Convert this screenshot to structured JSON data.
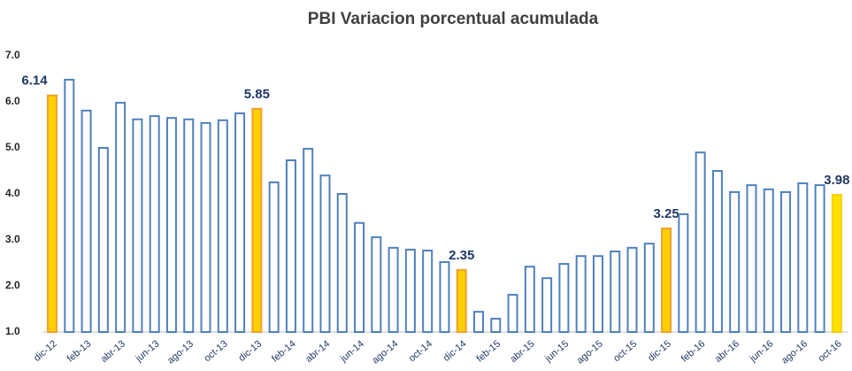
{
  "chart_data": {
    "type": "bar",
    "title": "PBI Variacion porcentual acumulada",
    "categories": [
      "dic-12",
      null,
      "feb-13",
      null,
      "abr-13",
      null,
      "jun-13",
      null,
      "ago-13",
      null,
      "oct-13",
      null,
      "dic-13",
      null,
      "feb-14",
      null,
      "abr-14",
      null,
      "jun-14",
      null,
      "ago-14",
      null,
      "oct-14",
      null,
      "dic-14",
      null,
      "feb-15",
      null,
      "abr-15",
      null,
      "jun-15",
      null,
      "ago-15",
      null,
      "oct-15",
      null,
      "dic-15",
      null,
      "feb-16",
      null,
      "abr-16",
      null,
      "jun-16",
      null,
      "ago-16",
      null,
      "oct-16"
    ],
    "values": [
      6.14,
      6.48,
      5.81,
      5.0,
      5.98,
      5.62,
      5.69,
      5.65,
      5.62,
      5.54,
      5.6,
      5.75,
      5.85,
      4.25,
      4.73,
      4.98,
      4.4,
      4.0,
      3.37,
      3.06,
      2.83,
      2.79,
      2.77,
      2.52,
      2.35,
      1.44,
      1.29,
      1.81,
      2.42,
      2.17,
      2.48,
      2.65,
      2.65,
      2.75,
      2.83,
      2.92,
      3.25,
      3.56,
      4.9,
      4.5,
      4.04,
      4.19,
      4.1,
      4.04,
      4.23,
      4.19,
      3.98
    ],
    "value_labels": [
      "6.14",
      null,
      null,
      null,
      null,
      null,
      null,
      null,
      null,
      null,
      null,
      null,
      "5.85",
      null,
      null,
      null,
      null,
      null,
      null,
      null,
      null,
      null,
      null,
      null,
      "2.35",
      null,
      null,
      null,
      null,
      null,
      null,
      null,
      null,
      null,
      null,
      null,
      "3.25",
      null,
      null,
      null,
      null,
      null,
      null,
      null,
      null,
      null,
      "3.98"
    ],
    "colors": [
      "#f0a030",
      "#4f81bd",
      "#4f81bd",
      "#4f81bd",
      "#4f81bd",
      "#4f81bd",
      "#4f81bd",
      "#4f81bd",
      "#4f81bd",
      "#4f81bd",
      "#4f81bd",
      "#4f81bd",
      "#f0a030",
      "#4f81bd",
      "#4f81bd",
      "#4f81bd",
      "#4f81bd",
      "#4f81bd",
      "#4f81bd",
      "#4f81bd",
      "#4f81bd",
      "#4f81bd",
      "#4f81bd",
      "#4f81bd",
      "#f0a030",
      "#4f81bd",
      "#4f81bd",
      "#4f81bd",
      "#4f81bd",
      "#4f81bd",
      "#4f81bd",
      "#4f81bd",
      "#4f81bd",
      "#4f81bd",
      "#4f81bd",
      "#4f81bd",
      "#f0a030",
      "#4f81bd",
      "#4f81bd",
      "#4f81bd",
      "#4f81bd",
      "#4f81bd",
      "#4f81bd",
      "#4f81bd",
      "#4f81bd",
      "#4f81bd",
      "#f5d000"
    ],
    "fills": [
      "#ffd000",
      "#ffffff",
      "#ffffff",
      "#ffffff",
      "#ffffff",
      "#ffffff",
      "#ffffff",
      "#ffffff",
      "#ffffff",
      "#ffffff",
      "#ffffff",
      "#ffffff",
      "#ffd000",
      "#ffffff",
      "#ffffff",
      "#ffffff",
      "#ffffff",
      "#ffffff",
      "#ffffff",
      "#ffffff",
      "#ffffff",
      "#ffffff",
      "#ffffff",
      "#ffffff",
      "#ffd000",
      "#ffffff",
      "#ffffff",
      "#ffffff",
      "#ffffff",
      "#ffffff",
      "#ffffff",
      "#ffffff",
      "#ffffff",
      "#ffffff",
      "#ffffff",
      "#ffffff",
      "#ffd000",
      "#ffffff",
      "#ffffff",
      "#ffffff",
      "#ffffff",
      "#ffffff",
      "#ffffff",
      "#ffffff",
      "#ffffff",
      "#ffffff",
      "#ffe000"
    ],
    "ylim": [
      1,
      7
    ],
    "yticks": [
      {
        "value": 1,
        "label": "1.0"
      },
      {
        "value": 2,
        "label": "2.0"
      },
      {
        "value": 3,
        "label": "3.0"
      },
      {
        "value": 4,
        "label": "4.0"
      },
      {
        "value": 5,
        "label": "5.0"
      },
      {
        "value": 6,
        "label": "6.0"
      },
      {
        "value": 7,
        "label": "7.0"
      }
    ],
    "grid": false
  }
}
